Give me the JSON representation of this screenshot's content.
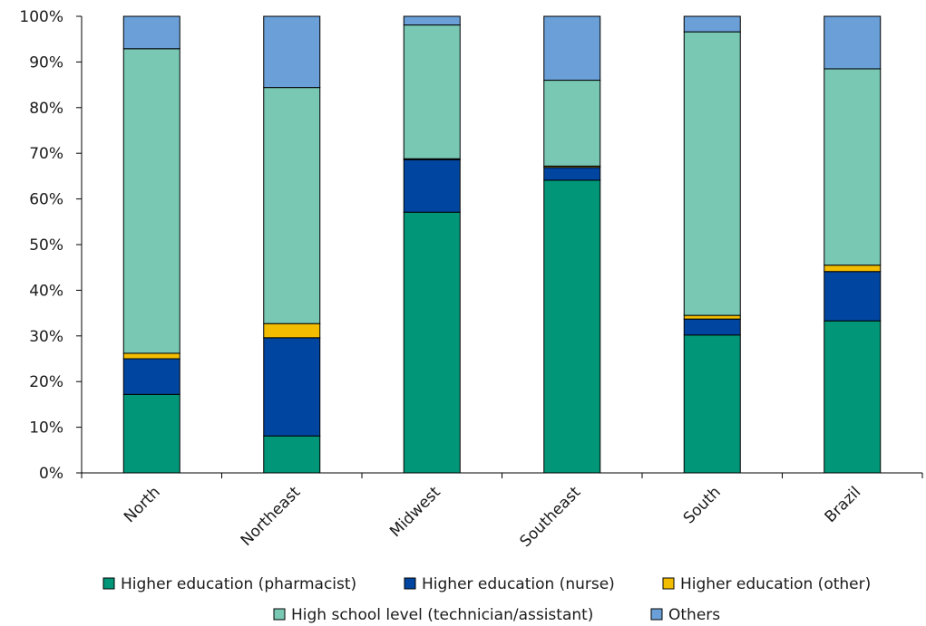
{
  "chart_data": {
    "type": "bar",
    "stacked": true,
    "categories": [
      "North",
      "Northeast",
      "Midwest",
      "Southeast",
      "South",
      "Brazil"
    ],
    "ylim": [
      0,
      100
    ],
    "yticks": [
      "0%",
      "10%",
      "20%",
      "30%",
      "40%",
      "50%",
      "60%",
      "70%",
      "80%",
      "90%",
      "100%"
    ],
    "series": [
      {
        "name": "Higher education (pharmacist)",
        "color": "#009677",
        "values": [
          17.2,
          8.1,
          57.1,
          64.1,
          30.2,
          33.3
        ]
      },
      {
        "name": "Higher education (nurse)",
        "color": "#0046A0",
        "values": [
          7.8,
          21.5,
          11.5,
          2.8,
          3.5,
          10.8
        ]
      },
      {
        "name": "Higher education (other)",
        "color": "#F2BC00",
        "values": [
          1.2,
          3.1,
          0.2,
          0.3,
          0.8,
          1.4
        ]
      },
      {
        "name": "High school level (technician/assistant)",
        "color": "#78C8B4",
        "values": [
          66.7,
          51.7,
          29.3,
          18.8,
          62.1,
          43.0
        ]
      },
      {
        "name": "Others",
        "color": "#6B9FD8",
        "values": [
          7.1,
          15.6,
          1.9,
          14.0,
          3.4,
          11.5
        ]
      }
    ],
    "legend_position": "bottom",
    "grid": false
  }
}
